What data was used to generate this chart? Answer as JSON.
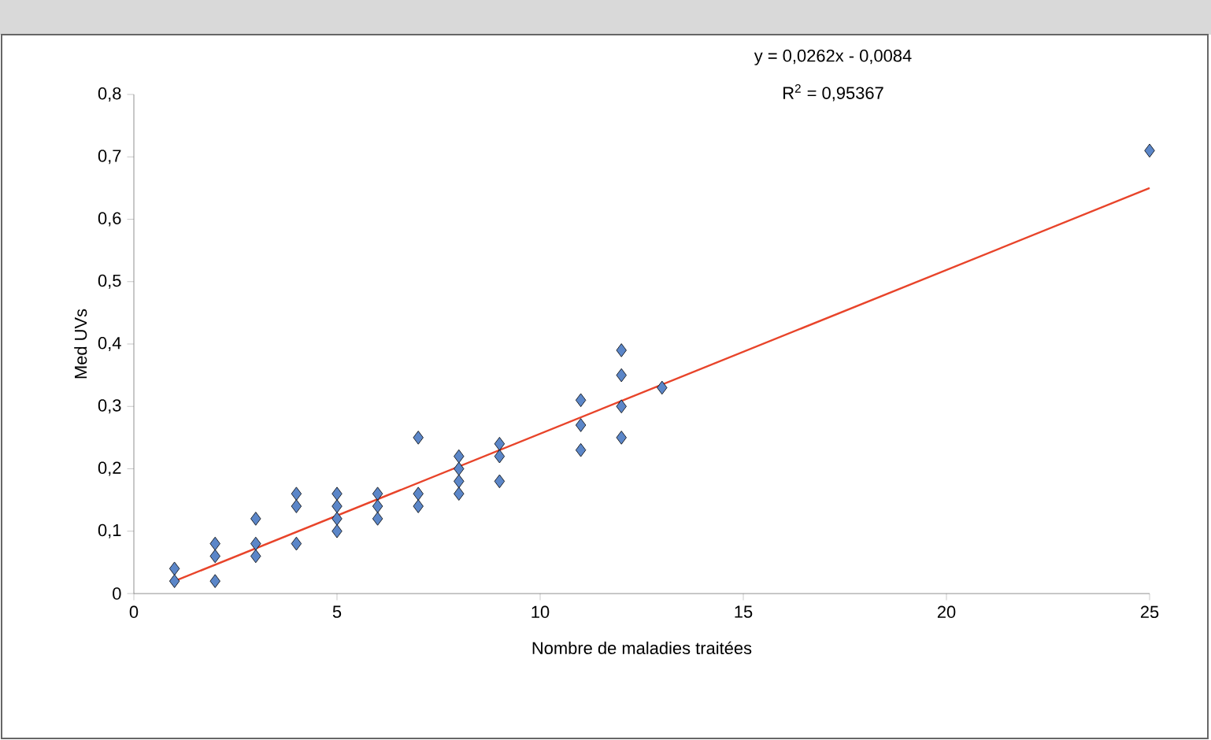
{
  "chart_data": {
    "type": "scatter",
    "xlabel": "Nombre de maladies traitées",
    "ylabel": "Med UVs",
    "annotations": [
      "y = 0,0262x - 0,0084",
      "R$^{2}$ = 0,95367"
    ],
    "xlim": [
      0,
      25
    ],
    "xticks": [
      0,
      5,
      10,
      15,
      20,
      25
    ],
    "ylim": [
      0,
      0.8
    ],
    "yticks": [
      {
        "value": 0,
        "label": "0"
      },
      {
        "value": 0.1,
        "label": "0,1"
      },
      {
        "value": 0.2,
        "label": "0,2"
      },
      {
        "value": 0.3,
        "label": "0,3"
      },
      {
        "value": 0.4,
        "label": "0,4"
      },
      {
        "value": 0.5,
        "label": "0,5"
      },
      {
        "value": 0.6,
        "label": "0,6"
      },
      {
        "value": 0.7,
        "label": "0,7"
      },
      {
        "value": 0.8,
        "label": "0,8"
      }
    ],
    "grid": false,
    "marker": "diamond",
    "series": [
      {
        "color": "#5b86c8",
        "x": [
          1,
          1,
          2,
          2,
          2,
          3,
          3,
          3,
          4,
          4,
          4,
          5,
          5,
          5,
          5,
          6,
          6,
          6,
          7,
          7,
          7,
          8,
          8,
          8,
          8,
          9,
          9,
          9,
          11,
          11,
          11,
          12,
          12,
          12,
          12,
          13,
          25
        ],
        "values": [
          0.04,
          0.02,
          0.08,
          0.06,
          0.02,
          0.12,
          0.08,
          0.06,
          0.16,
          0.14,
          0.08,
          0.16,
          0.14,
          0.12,
          0.1,
          0.16,
          0.14,
          0.12,
          0.25,
          0.16,
          0.14,
          0.22,
          0.2,
          0.18,
          0.16,
          0.24,
          0.22,
          0.18,
          0.31,
          0.27,
          0.23,
          0.39,
          0.35,
          0.3,
          0.25,
          0.33,
          0.71
        ]
      },
      {
        "type": "line",
        "color": "#e8442a",
        "line_style": "solid",
        "marker": "none",
        "x": [
          1,
          25
        ],
        "values": [
          0.02,
          0.65
        ]
      }
    ]
  }
}
